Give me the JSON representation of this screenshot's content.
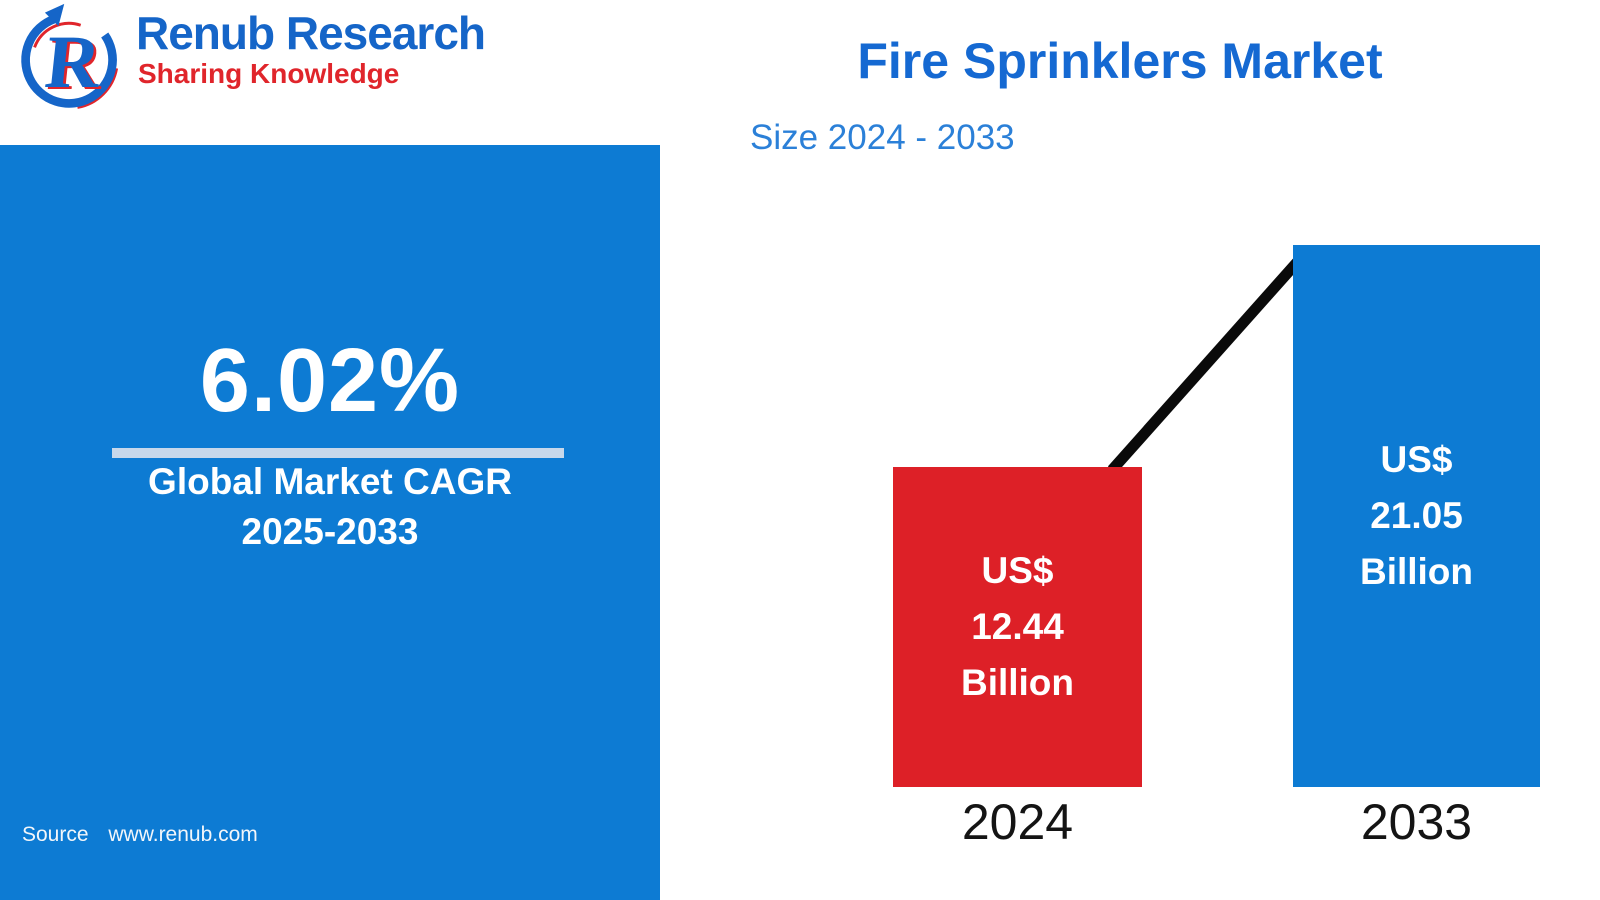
{
  "logo": {
    "icon": "renub-r-swoosh-logo-icon",
    "name": "Renub Research",
    "tagline": "Sharing Knowledge"
  },
  "header": {
    "title": "Fire Sprinklers Market",
    "subtitle": "Size 2024 - 2033"
  },
  "cagr_panel": {
    "value": "6.02%",
    "label_line1": "Global Market CAGR",
    "label_line2": "2025-2033",
    "source_label": "Source",
    "source_url": "www.renub.com"
  },
  "chart_data": {
    "type": "bar",
    "title": "Fire Sprinklers Market",
    "subtitle": "Size 2024 - 2033",
    "categories": [
      "2024",
      "2033"
    ],
    "values": [
      12.44,
      21.05
    ],
    "value_unit": "US$ Billion",
    "ylim": [
      0,
      21.05
    ],
    "grid": false,
    "legend": false,
    "annotations": [
      "black rising connector line between bar tops"
    ],
    "bars": [
      {
        "year": "2024",
        "value": 12.44,
        "color": "#dd2027",
        "label_lines": [
          "US$",
          "12.44",
          "Billion"
        ]
      },
      {
        "year": "2033",
        "value": 21.05,
        "color": "#0d7bd3",
        "label_lines": [
          "US$",
          "21.05",
          "Billion"
        ]
      }
    ]
  },
  "colors": {
    "panel_blue": "#0d7bd3",
    "divider_blue": "#c7d8eb",
    "bar_red": "#dd2027",
    "bar_blue": "#0d7bd3",
    "title_blue": "#1569d2",
    "subtitle_blue": "#2b80d8",
    "logo_blue": "#1565c8",
    "logo_red": "#e0252b",
    "connector_black": "#0a0a0a"
  }
}
